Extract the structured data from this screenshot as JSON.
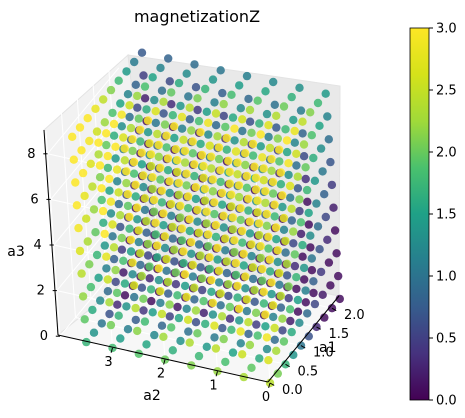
{
  "chart_data": {
    "type": "scatter",
    "projection": "3d",
    "title": "magnetizationZ",
    "xlabel": "a1",
    "ylabel": "a2",
    "zlabel": "a3",
    "x_ticks": [
      "0.0",
      "0.5",
      "1.0",
      "1.5",
      "2.0"
    ],
    "y_ticks": [
      "0",
      "1",
      "2",
      "3"
    ],
    "z_ticks": [
      "0",
      "2",
      "4",
      "6",
      "8"
    ],
    "xlim": [
      0,
      2.3
    ],
    "ylim": [
      0,
      4
    ],
    "zlim": [
      0,
      9
    ],
    "grid": true,
    "colormap": "viridis",
    "colorbar": {
      "range": [
        0.0,
        3.0
      ],
      "ticks": [
        "0.0",
        "0.5",
        "1.0",
        "1.5",
        "2.0",
        "2.5",
        "3.0"
      ],
      "placement": "right"
    },
    "points": {
      "a1_values": [
        0.0,
        0.25,
        0.5,
        0.75,
        1.0,
        1.25,
        1.5,
        1.75,
        2.0,
        2.25
      ],
      "a2_values": [
        0.0,
        0.5,
        1.0,
        1.5,
        2.0,
        2.5,
        3.0,
        3.5
      ],
      "a3_values": [
        0,
        1,
        2,
        3,
        4,
        5,
        6,
        7,
        8,
        9
      ],
      "color_value_rule": "magnetizationZ rises with a3 and falls with a1: low (~0.1) at high a1 / low a3, high (~3.0) at low a1 / high a3"
    },
    "marker_color": "#440154",
    "colors": {
      "low": "#440154",
      "mid": "#21918c",
      "high": "#fde725"
    }
  }
}
